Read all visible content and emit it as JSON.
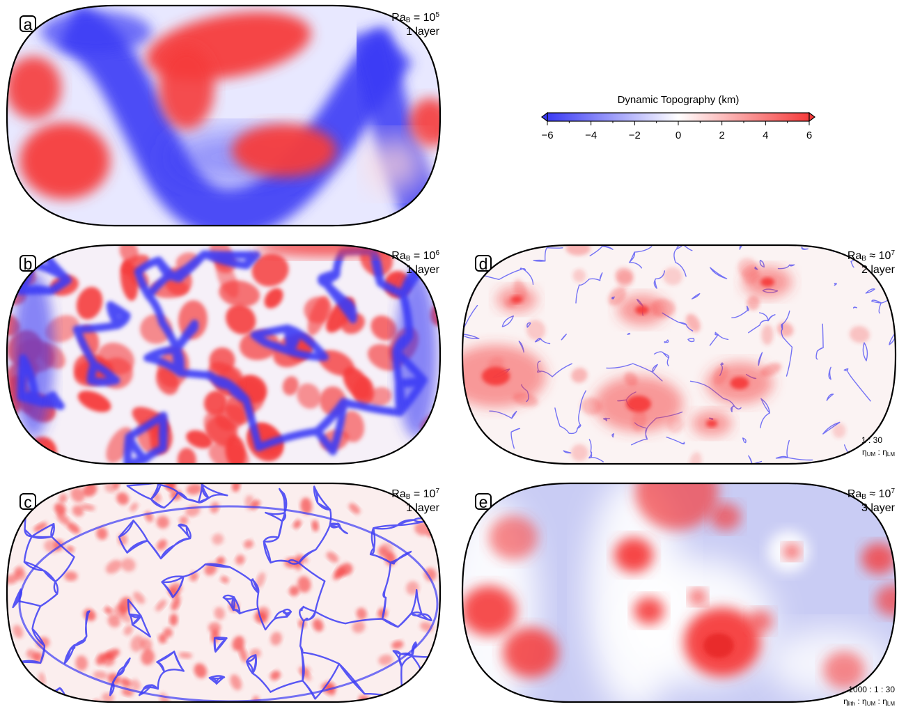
{
  "colorbar": {
    "title": "Dynamic Topography (km)",
    "min": -6,
    "max": 6,
    "ticks": [
      {
        "value": -6,
        "label": "−6"
      },
      {
        "value": -4,
        "label": "−4"
      },
      {
        "value": -2,
        "label": "−2"
      },
      {
        "value": 0,
        "label": "0"
      },
      {
        "value": 2,
        "label": "2"
      },
      {
        "value": 4,
        "label": "4"
      },
      {
        "value": 6,
        "label": "6"
      }
    ],
    "colors": {
      "negative": "#3b3bf5",
      "zero": "#ffffff",
      "positive": "#f53b3b"
    }
  },
  "panels": [
    {
      "id": "a",
      "letter": "a",
      "ra_rel": "=",
      "ra_exp": "5",
      "layer": "1 layer",
      "ratio": null
    },
    {
      "id": "b",
      "letter": "b",
      "ra_rel": "=",
      "ra_exp": "6",
      "layer": "1 layer",
      "ratio": null
    },
    {
      "id": "c",
      "letter": "c",
      "ra_rel": "=",
      "ra_exp": "7",
      "layer": "1 layer",
      "ratio": null
    },
    {
      "id": "d",
      "letter": "d",
      "ra_rel": "≈",
      "ra_exp": "7",
      "layer": "2 layer",
      "ratio": {
        "values": "1 : 30",
        "names": [
          "UM",
          "LM"
        ]
      }
    },
    {
      "id": "e",
      "letter": "e",
      "ra_rel": "≈",
      "ra_exp": "7",
      "layer": "3 layer",
      "ratio": {
        "values": "1000 : 1 : 30",
        "names": [
          "lith",
          "UM",
          "LM"
        ]
      }
    }
  ]
}
